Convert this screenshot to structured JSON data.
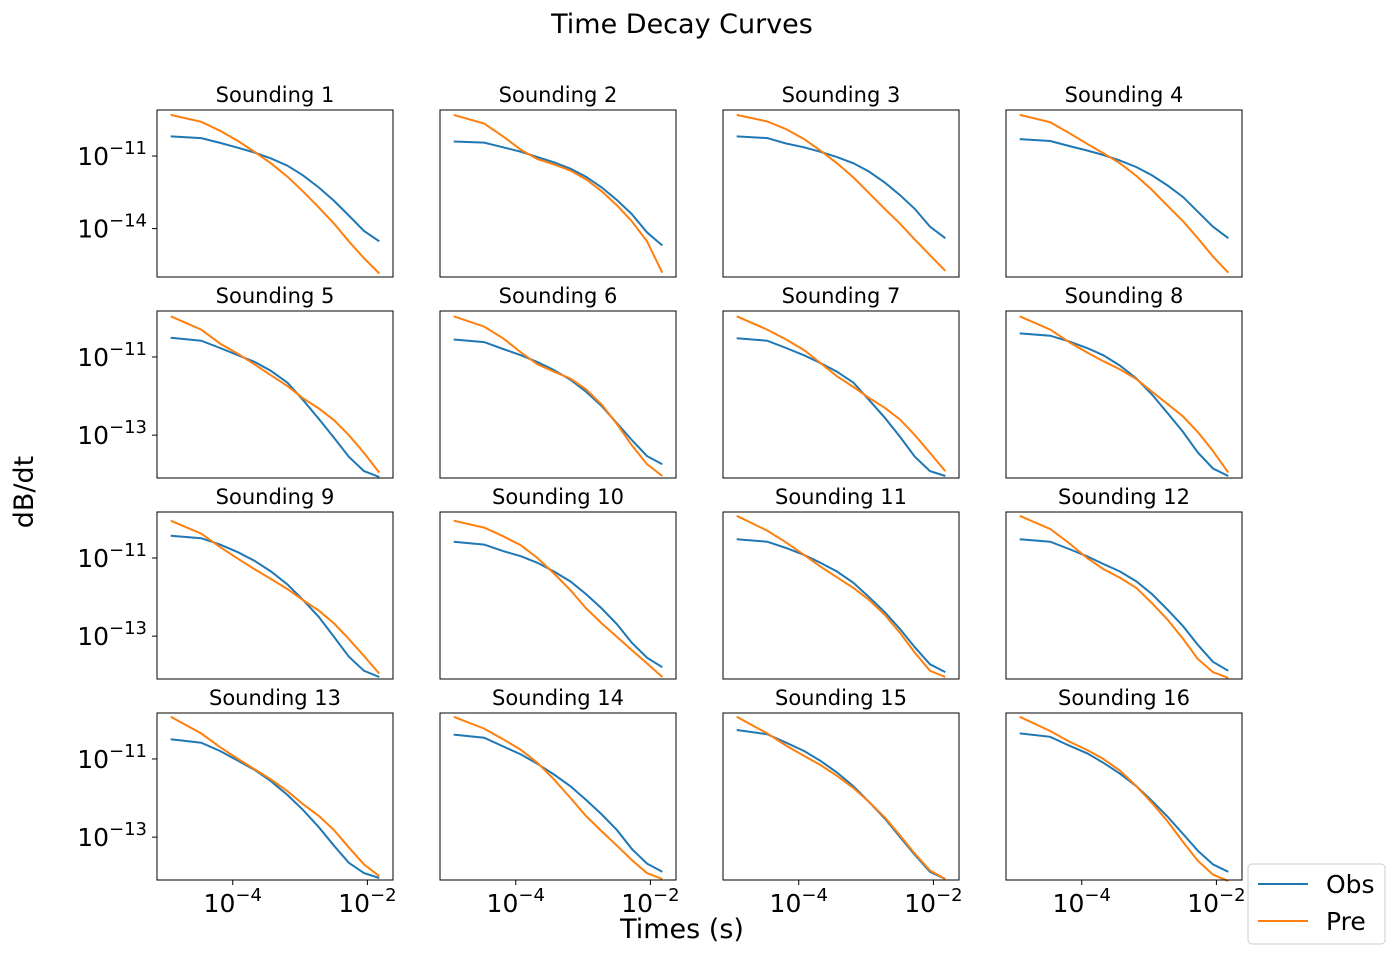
{
  "figure": {
    "suptitle": "Time Decay Curves",
    "xlabel": "Times (s)",
    "ylabel": "dB/dt",
    "colors": {
      "obs": "#1f77b4",
      "pre": "#ff7f0e",
      "axes": "#000000"
    },
    "legend": {
      "position": "lower-right",
      "entries": [
        "Obs",
        "Pre"
      ]
    }
  },
  "chart_data": {
    "type": "line",
    "xscale": "log",
    "yscale": "log",
    "x_tick_labels": [
      "10^-4",
      "10^-2"
    ],
    "x": [
      1.2e-05,
      3.4e-05,
      6.5e-05,
      0.00012,
      0.00021,
      0.00037,
      0.00065,
      0.0011,
      0.0019,
      0.0032,
      0.0053,
      0.0089,
      0.015
    ],
    "subplots": [
      {
        "title": "Sounding 1",
        "ylim": [
          1e-16,
          8e-10
        ],
        "yticks": [
          1e-11,
          1e-14
        ],
        "ytick_labels": [
          "10^-11",
          "10^-14"
        ],
        "series": [
          {
            "name": "Obs",
            "values": [
              6.5e-11,
              5.5e-11,
              3.5e-11,
              2.2e-11,
              1.4e-11,
              8e-12,
              4e-12,
              1.6e-12,
              5e-13,
              1.4e-13,
              3.5e-14,
              8e-15,
              3e-15
            ]
          },
          {
            "name": "Pre",
            "values": [
              5e-10,
              2.6e-10,
              1.1e-10,
              4.2e-11,
              1.5e-11,
              5e-12,
              1.4e-12,
              3.5e-13,
              7.5e-14,
              1.6e-14,
              3e-15,
              6e-16,
              1.4e-16
            ]
          }
        ]
      },
      {
        "title": "Sounding 2",
        "ylim": [
          1e-16,
          8e-10
        ],
        "yticks": [],
        "ytick_labels": [],
        "series": [
          {
            "name": "Obs",
            "values": [
              4e-11,
              3.6e-11,
              2.3e-11,
              1.5e-11,
              9e-12,
              5.5e-12,
              3e-12,
              1.4e-12,
              5e-13,
              1.5e-13,
              4e-14,
              7e-15,
              2e-15
            ]
          },
          {
            "name": "Pre",
            "values": [
              5e-10,
              2.2e-10,
              6.5e-11,
              1.8e-11,
              7.5e-12,
              4.5e-12,
              2.5e-12,
              1.1e-12,
              3.5e-13,
              9e-14,
              2e-14,
              3e-15,
              1.5e-16
            ]
          }
        ]
      },
      {
        "title": "Sounding 3",
        "ylim": [
          1e-16,
          8e-10
        ],
        "yticks": [],
        "ytick_labels": [],
        "series": [
          {
            "name": "Obs",
            "values": [
              6.5e-11,
              5.5e-11,
              3.3e-11,
              2.3e-11,
              1.5e-11,
              9e-12,
              5e-12,
              2.3e-12,
              8e-13,
              2.4e-13,
              6.5e-14,
              1.2e-14,
              4e-15
            ]
          },
          {
            "name": "Pre",
            "values": [
              5e-10,
              2.7e-10,
              1.3e-10,
              5e-11,
              1.7e-11,
              5e-12,
              1.3e-12,
              3e-13,
              6.5e-14,
              1.6e-14,
              3.5e-15,
              8e-16,
              1.8e-16
            ]
          }
        ]
      },
      {
        "title": "Sounding 4",
        "ylim": [
          1e-16,
          8e-10
        ],
        "yticks": [],
        "ytick_labels": [],
        "series": [
          {
            "name": "Obs",
            "values": [
              5e-11,
              4.2e-11,
              2.6e-11,
              1.7e-11,
              1.1e-11,
              6.5e-12,
              3.5e-12,
              1.6e-12,
              6e-13,
              2e-13,
              5e-14,
              1.2e-14,
              4e-15
            ]
          },
          {
            "name": "Pre",
            "values": [
              5e-10,
              2.5e-10,
              9e-11,
              3.2e-11,
              1.3e-11,
              5e-12,
              1.5e-12,
              4e-13,
              8.5e-14,
              2e-14,
              4e-15,
              7e-16,
              1.5e-16
            ]
          }
        ]
      },
      {
        "title": "Sounding 5",
        "ylim": [
          8e-15,
          1.5e-10
        ],
        "yticks": [
          1e-11,
          1e-13
        ],
        "ytick_labels": [
          "10^-11",
          "10^-13"
        ],
        "series": [
          {
            "name": "Obs",
            "values": [
              3.1e-11,
              2.6e-11,
              1.7e-11,
              1.1e-11,
              7.5e-12,
              4.4e-12,
              2.2e-12,
              8e-13,
              2.6e-13,
              8.5e-14,
              2.8e-14,
              1.2e-14,
              8.5e-15
            ]
          },
          {
            "name": "Pre",
            "values": [
              1.1e-10,
              5e-11,
              2.2e-11,
              1.2e-11,
              6.5e-12,
              3.4e-12,
              1.8e-12,
              8.8e-13,
              4.8e-13,
              2.4e-13,
              1e-13,
              3.5e-14,
              1.1e-14
            ]
          }
        ]
      },
      {
        "title": "Sounding 6",
        "ylim": [
          8e-15,
          1.5e-10
        ],
        "yticks": [],
        "ytick_labels": [],
        "series": [
          {
            "name": "Obs",
            "values": [
              2.8e-11,
              2.4e-11,
              1.6e-11,
              1.1e-11,
              7.4e-12,
              4.6e-12,
              2.6e-12,
              1.3e-12,
              5.5e-13,
              2e-13,
              7.5e-14,
              2.9e-14,
              1.8e-14
            ]
          },
          {
            "name": "Pre",
            "values": [
              1.1e-10,
              6e-11,
              3e-11,
              1.3e-11,
              6.5e-12,
              4.2e-12,
              2.8e-12,
              1.5e-12,
              6e-13,
              1.9e-13,
              5.5e-14,
              1.8e-14,
              9e-15
            ]
          }
        ]
      },
      {
        "title": "Sounding 7",
        "ylim": [
          8e-15,
          1.5e-10
        ],
        "yticks": [],
        "ytick_labels": [],
        "series": [
          {
            "name": "Obs",
            "values": [
              3e-11,
              2.6e-11,
              1.7e-11,
              1.1e-11,
              7e-12,
              4.2e-12,
              2.2e-12,
              8e-13,
              2.8e-13,
              9e-14,
              2.8e-14,
              1.2e-14,
              9e-15
            ]
          },
          {
            "name": "Pre",
            "values": [
              1.1e-10,
              5e-11,
              2.8e-11,
              1.5e-11,
              7e-12,
              3.2e-12,
              1.7e-12,
              9e-13,
              5e-13,
              2.5e-13,
              1e-13,
              3.5e-14,
              1.2e-14
            ]
          }
        ]
      },
      {
        "title": "Sounding 8",
        "ylim": [
          8e-15,
          1.5e-10
        ],
        "yticks": [],
        "ytick_labels": [],
        "series": [
          {
            "name": "Obs",
            "values": [
              4e-11,
              3.5e-11,
              2.5e-11,
              1.7e-11,
              1.1e-11,
              6e-12,
              2.8e-12,
              1.1e-12,
              3.6e-13,
              1.2e-13,
              3.6e-14,
              1.4e-14,
              9e-15
            ]
          },
          {
            "name": "Pre",
            "values": [
              1.1e-10,
              5e-11,
              2.4e-11,
              1.3e-11,
              7.8e-12,
              4.8e-12,
              2.7e-12,
              1.3e-12,
              6.2e-13,
              3e-13,
              1.2e-13,
              3.9e-14,
              1.1e-14
            ]
          }
        ]
      },
      {
        "title": "Sounding 9",
        "ylim": [
          8e-15,
          1.5e-10
        ],
        "yticks": [
          1e-11,
          1e-13
        ],
        "ytick_labels": [
          "10^-11",
          "10^-13"
        ],
        "series": [
          {
            "name": "Obs",
            "values": [
              3.7e-11,
              3.2e-11,
              2.2e-11,
              1.4e-11,
              8.5e-12,
              4.5e-12,
              2.1e-12,
              8.5e-13,
              3.1e-13,
              9.5e-14,
              3e-14,
              1.3e-14,
              9e-15
            ]
          },
          {
            "name": "Pre",
            "values": [
              9e-11,
              4.2e-11,
              1.9e-11,
              9.5e-12,
              5.2e-12,
              2.9e-12,
              1.6e-12,
              8.4e-13,
              4.5e-13,
              2.1e-13,
              8.5e-14,
              3.1e-14,
              1.1e-14
            ]
          }
        ]
      },
      {
        "title": "Sounding 10",
        "ylim": [
          8e-15,
          1.5e-10
        ],
        "yticks": [],
        "ytick_labels": [],
        "series": [
          {
            "name": "Obs",
            "values": [
              2.6e-11,
              2.2e-11,
              1.5e-11,
              1.1e-11,
              7.5e-12,
              4.5e-12,
              2.5e-12,
              1.2e-12,
              5.1e-13,
              2e-13,
              6.8e-14,
              2.8e-14,
              1.6e-14
            ]
          },
          {
            "name": "Pre",
            "values": [
              9e-11,
              6e-11,
              3.6e-11,
              2.1e-11,
              1e-11,
              4e-12,
              1.5e-12,
              5.2e-13,
              2.1e-13,
              9.5e-14,
              4.4e-14,
              2e-14,
              9e-15
            ]
          }
        ]
      },
      {
        "title": "Sounding 11",
        "ylim": [
          8e-15,
          1.5e-10
        ],
        "yticks": [],
        "ytick_labels": [],
        "series": [
          {
            "name": "Obs",
            "values": [
              3e-11,
              2.6e-11,
              1.8e-11,
              1.2e-11,
              7.5e-12,
              4.5e-12,
              2.3e-12,
              1e-12,
              4.1e-13,
              1.5e-13,
              5.2e-14,
              1.9e-14,
              1.2e-14
            ]
          },
          {
            "name": "Pre",
            "values": [
              1.2e-10,
              5e-11,
              2.5e-11,
              1.2e-11,
              6e-12,
              3.2e-12,
              1.7e-12,
              8.5e-13,
              3.5e-13,
              1.2e-13,
              3.8e-14,
              1.3e-14,
              9e-15
            ]
          }
        ]
      },
      {
        "title": "Sounding 12",
        "ylim": [
          8e-15,
          1.5e-10
        ],
        "yticks": [],
        "ytick_labels": [],
        "series": [
          {
            "name": "Obs",
            "values": [
              3e-11,
              2.6e-11,
              1.7e-11,
              1.1e-11,
              7e-12,
              4.5e-12,
              2.5e-12,
              1.2e-12,
              4.7e-13,
              1.8e-13,
              6e-14,
              2.2e-14,
              1.3e-14
            ]
          },
          {
            "name": "Pre",
            "values": [
              1.2e-10,
              5.5e-11,
              2.4e-11,
              1e-11,
              5.2e-12,
              3.1e-12,
              1.7e-12,
              7e-13,
              2.6e-13,
              8.5e-14,
              2.6e-14,
              1.2e-14,
              8.5e-15
            ]
          }
        ]
      },
      {
        "title": "Sounding 13",
        "ylim": [
          8e-15,
          1.5e-10
        ],
        "yticks": [
          1e-11,
          1e-13
        ],
        "ytick_labels": [
          "10^-11",
          "10^-13"
        ],
        "series": [
          {
            "name": "Obs",
            "values": [
              3.2e-11,
              2.6e-11,
              1.6e-11,
              9e-12,
              5.3e-12,
              2.7e-12,
              1.2e-12,
              5e-13,
              1.8e-13,
              6e-14,
              2.2e-14,
              1.2e-14,
              9e-15
            ]
          },
          {
            "name": "Pre",
            "values": [
              1.2e-10,
              4.5e-11,
              2e-11,
              1e-11,
              5.5e-12,
              3e-12,
              1.5e-12,
              7e-13,
              3.5e-13,
              1.5e-13,
              5.5e-14,
              2e-14,
              1e-14
            ]
          }
        ]
      },
      {
        "title": "Sounding 14",
        "ylim": [
          8e-15,
          1.5e-10
        ],
        "yticks": [],
        "ytick_labels": [],
        "series": [
          {
            "name": "Obs",
            "values": [
              4.2e-11,
              3.5e-11,
              2.1e-11,
              1.3e-11,
              7.5e-12,
              4e-12,
              2e-12,
              9e-13,
              3.8e-13,
              1.5e-13,
              5e-14,
              2.1e-14,
              1.3e-14
            ]
          },
          {
            "name": "Pre",
            "values": [
              1.2e-10,
              6e-11,
              3.2e-11,
              1.7e-11,
              8e-12,
              3e-12,
              1e-12,
              3.5e-13,
              1.4e-13,
              6e-14,
              2.6e-14,
              1.2e-14,
              8.5e-15
            ]
          }
        ]
      },
      {
        "title": "Sounding 15",
        "ylim": [
          8e-15,
          1.5e-10
        ],
        "yticks": [],
        "ytick_labels": [],
        "series": [
          {
            "name": "Obs",
            "values": [
              5.5e-11,
              4.3e-11,
              2.6e-11,
              1.6e-11,
              9e-12,
              4.5e-12,
              2e-12,
              8e-13,
              3e-13,
              1e-13,
              3.5e-14,
              1.3e-14,
              8.5e-15
            ]
          },
          {
            "name": "Pre",
            "values": [
              1.2e-10,
              4.5e-11,
              2.2e-11,
              1.2e-11,
              7e-12,
              3.7e-12,
              1.8e-12,
              8e-13,
              3.2e-13,
              1.1e-13,
              3.8e-14,
              1.4e-14,
              8.5e-15
            ]
          }
        ]
      },
      {
        "title": "Sounding 16",
        "ylim": [
          8e-15,
          1.5e-10
        ],
        "yticks": [],
        "ytick_labels": [],
        "series": [
          {
            "name": "Obs",
            "values": [
              4.5e-11,
              3.7e-11,
              2.2e-11,
              1.4e-11,
              8e-12,
              4.2e-12,
              2e-12,
              8.5e-13,
              3.3e-13,
              1.2e-13,
              4.5e-14,
              2e-14,
              1.3e-14
            ]
          },
          {
            "name": "Pre",
            "values": [
              1.2e-10,
              5.2e-11,
              2.8e-11,
              1.7e-11,
              1e-11,
              5e-12,
              2e-12,
              7.5e-13,
              2.5e-13,
              7.5e-14,
              2.5e-14,
              1.1e-14,
              7.5e-15
            ]
          }
        ]
      }
    ]
  }
}
